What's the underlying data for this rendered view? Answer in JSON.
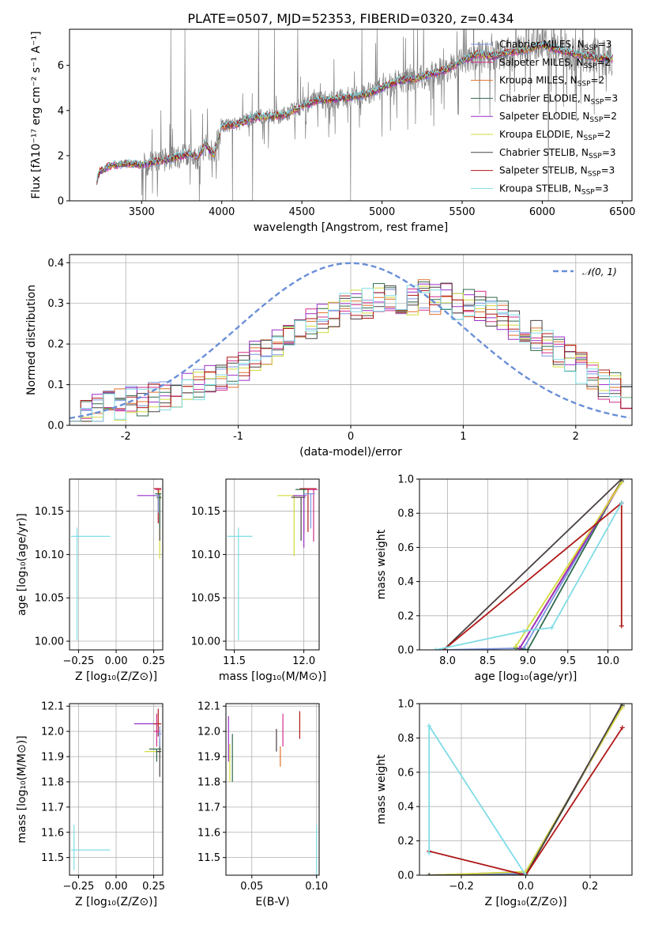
{
  "figure_title": "PLATE=0507, MJD=52353, FIBERID=0320, z=0.434",
  "models": [
    {
      "name": "Chabrier MILES, N",
      "sub": "SSP",
      "eq": "=3",
      "color": "#7b96e0"
    },
    {
      "name": "Salpeter MILES, N",
      "sub": "SSP",
      "eq": "=2",
      "color": "#d22f8c"
    },
    {
      "name": "Kroupa MILES, N",
      "sub": "SSP",
      "eq": "=2",
      "color": "#e0702a"
    },
    {
      "name": "Chabrier ELODIE, N",
      "sub": "SSP",
      "eq": "=3",
      "color": "#2f6a4c"
    },
    {
      "name": "Salpeter ELODIE, N",
      "sub": "SSP",
      "eq": "=2",
      "color": "#9a2fc8"
    },
    {
      "name": "Kroupa ELODIE, N",
      "sub": "SSP",
      "eq": "=2",
      "color": "#d2dc3c"
    },
    {
      "name": "Chabrier STELIB, N",
      "sub": "SSP",
      "eq": "=3",
      "color": "#4a4040"
    },
    {
      "name": "Salpeter STELIB, N",
      "sub": "SSP",
      "eq": "=3",
      "color": "#b01818"
    },
    {
      "name": "Kroupa STELIB, N",
      "sub": "SSP",
      "eq": "=3",
      "color": "#80dce6"
    }
  ],
  "chart_data": [
    {
      "id": "spectrum",
      "type": "line",
      "xlabel": "wavelength [Angstrom, rest frame]",
      "ylabel": "Flux [fλ10⁻¹⁷ erg cm⁻² s⁻¹ A⁻¹]",
      "xlim": [
        3050,
        6560
      ],
      "ylim": [
        0,
        7.6
      ],
      "xticks": [
        3500,
        4000,
        4500,
        5000,
        5500,
        6000,
        6500
      ],
      "yticks": [
        0,
        2,
        4,
        6
      ],
      "data_color": "#7f7f7f",
      "model_x": [
        3220,
        3240,
        3300,
        3400,
        3500,
        3600,
        3700,
        3800,
        3850,
        3900,
        3950,
        4000,
        4100,
        4200,
        4300,
        4400,
        4500,
        4600,
        4700,
        4800,
        4900,
        5000,
        5100,
        5200,
        5300,
        5400,
        5500,
        5600,
        5700,
        5800,
        5900,
        6000,
        6100,
        6200,
        6300,
        6400
      ],
      "model_y": [
        0.9,
        1.3,
        1.55,
        1.65,
        1.6,
        1.75,
        1.9,
        2.1,
        1.9,
        2.5,
        2.0,
        3.3,
        3.4,
        3.7,
        3.75,
        3.8,
        4.2,
        4.45,
        4.5,
        4.6,
        4.7,
        5.0,
        5.3,
        5.4,
        5.6,
        5.8,
        6.2,
        6.5,
        6.4,
        6.6,
        6.7,
        6.9,
        6.7,
        6.5,
        6.4,
        6.3
      ],
      "legend_position": "upper right"
    },
    {
      "id": "residuals",
      "type": "step",
      "xlabel": "(data-model)/error",
      "ylabel": "Normed distribution",
      "xlim": [
        -2.5,
        2.5
      ],
      "ylim": [
        0,
        0.42
      ],
      "xticks": [
        -2,
        -1,
        0,
        1,
        2
      ],
      "yticks": [
        0.0,
        0.1,
        0.2,
        0.3,
        0.4
      ],
      "bin_width": 0.1,
      "reference_curve": "N(0,1)",
      "legend_label": "𝒩(0, 1)",
      "legend_position": "upper right",
      "histogram_shape": [
        0.03,
        0.03,
        0.04,
        0.05,
        0.05,
        0.06,
        0.06,
        0.07,
        0.07,
        0.08,
        0.09,
        0.1,
        0.11,
        0.12,
        0.13,
        0.15,
        0.17,
        0.18,
        0.2,
        0.22,
        0.23,
        0.25,
        0.26,
        0.28,
        0.29,
        0.3,
        0.3,
        0.31,
        0.31,
        0.31,
        0.31,
        0.32,
        0.31,
        0.31,
        0.3,
        0.3,
        0.29,
        0.28,
        0.27,
        0.25,
        0.24,
        0.22,
        0.2,
        0.18,
        0.16,
        0.14,
        0.12,
        0.1,
        0.09,
        0.07
      ]
    },
    {
      "id": "Z-age",
      "type": "errorbar",
      "xlabel": "Z [log₁₀(Z/Z⊙)]",
      "ylabel": "age  [log₁₀(age/yr)]",
      "xlim": [
        -0.31,
        0.31
      ],
      "ylim": [
        9.99,
        10.187
      ],
      "xticks": [
        -0.25,
        0.0,
        0.25
      ],
      "xticklabels": [
        "−0.25",
        "0.00",
        "0.25"
      ],
      "yticks": [
        10.0,
        10.05,
        10.1,
        10.15
      ],
      "yticklabels": [
        "10.00",
        "10.05",
        "10.10",
        "10.15"
      ],
      "points": [
        {
          "m": 8,
          "x": -0.26,
          "xerr": [
            0.04,
            0.22
          ],
          "y": 10.121,
          "yerr": [
            0.12,
            0.01
          ]
        },
        {
          "m": 7,
          "x": 0.28,
          "xerr": [
            0.03,
            0.02
          ],
          "y": 10.176,
          "yerr": [
            0.04,
            0.0
          ]
        },
        {
          "m": 1,
          "x": 0.29,
          "xerr": [
            0.03,
            0.01
          ],
          "y": 10.175,
          "yerr": [
            0.04,
            0.0
          ]
        },
        {
          "m": 4,
          "x": 0.22,
          "xerr": [
            0.08,
            0.07
          ],
          "y": 10.168,
          "yerr": [
            0.0,
            0.0
          ]
        },
        {
          "m": 5,
          "x": 0.29,
          "xerr": [
            0.02,
            0.01
          ],
          "y": 10.165,
          "yerr": [
            0.07,
            0.01
          ]
        },
        {
          "m": 6,
          "x": 0.29,
          "xerr": [
            0.02,
            0.01
          ],
          "y": 10.166,
          "yerr": [
            0.05,
            0.0
          ]
        },
        {
          "m": 3,
          "x": 0.29,
          "xerr": [
            0.03,
            0.01
          ],
          "y": 10.17,
          "yerr": [
            0.04,
            0.0
          ]
        },
        {
          "m": 0,
          "x": 0.28,
          "xerr": [
            0.02,
            0.01
          ],
          "y": 10.168,
          "yerr": [
            0.02,
            0.0
          ]
        }
      ]
    },
    {
      "id": "mass-age",
      "type": "errorbar",
      "xlabel": "mass [log₁₀(M/M⊙)]",
      "ylabel": "",
      "xlim": [
        11.44,
        12.11
      ],
      "ylim": [
        9.99,
        10.187
      ],
      "xticks": [
        11.5,
        12.0
      ],
      "xticklabels": [
        "11.5",
        "12.0"
      ],
      "yticks": [
        10.0,
        10.05,
        10.1,
        10.15
      ],
      "yticklabels": [
        "10.00",
        "10.05",
        "10.10",
        "10.15"
      ],
      "points": [
        {
          "m": 8,
          "x": 11.53,
          "xerr": [
            0.08,
            0.1
          ],
          "y": 10.121,
          "yerr": [
            0.12,
            0.01
          ]
        },
        {
          "m": 5,
          "x": 11.93,
          "xerr": [
            0.12,
            0.05
          ],
          "y": 10.168,
          "yerr": [
            0.07,
            0.0
          ]
        },
        {
          "m": 3,
          "x": 12.0,
          "xerr": [
            0.06,
            0.04
          ],
          "y": 10.175,
          "yerr": [
            0.05,
            0.0
          ]
        },
        {
          "m": 7,
          "x": 12.03,
          "xerr": [
            0.06,
            0.06
          ],
          "y": 10.176,
          "yerr": [
            0.05,
            0.0
          ]
        },
        {
          "m": 1,
          "x": 12.07,
          "xerr": [
            0.05,
            0.03
          ],
          "y": 10.175,
          "yerr": [
            0.06,
            0.0
          ]
        },
        {
          "m": 4,
          "x": 12.0,
          "xerr": [
            0.08,
            0.02
          ],
          "y": 10.168,
          "yerr": [
            0.06,
            0.0
          ]
        },
        {
          "m": 6,
          "x": 11.98,
          "xerr": [
            0.07,
            0.03
          ],
          "y": 10.166,
          "yerr": [
            0.05,
            0.0
          ]
        },
        {
          "m": 0,
          "x": 12.05,
          "xerr": [
            0.05,
            0.03
          ],
          "y": 10.17,
          "yerr": [
            0.04,
            0.0
          ]
        }
      ]
    },
    {
      "id": "age-weight",
      "type": "line",
      "xlabel": "age  [log₁₀(age/yr)]",
      "ylabel": "mass weight",
      "xlim": [
        7.65,
        10.3
      ],
      "ylim": [
        0,
        1.0
      ],
      "xticks": [
        8.0,
        8.5,
        9.0,
        9.5,
        10.0
      ],
      "xticklabels": [
        "8.0",
        "8.5",
        "9.0",
        "9.5",
        "10.0"
      ],
      "yticks": [
        0.0,
        0.2,
        0.4,
        0.6,
        0.8,
        1.0
      ],
      "yticklabels": [
        "0.0",
        "0.2",
        "0.4",
        "0.6",
        "0.8",
        "1.0"
      ],
      "series": [
        {
          "m": 0,
          "x": [
            7.95,
            8.95,
            10.17
          ],
          "y": [
            0.0,
            0.01,
            0.99
          ]
        },
        {
          "m": 1,
          "x": [
            8.9,
            10.17
          ],
          "y": [
            0.01,
            0.99
          ]
        },
        {
          "m": 2,
          "x": [
            8.9,
            10.17
          ],
          "y": [
            0.01,
            0.99
          ]
        },
        {
          "m": 3,
          "x": [
            8.85,
            9.0,
            10.17
          ],
          "y": [
            0.01,
            0.0,
            0.99
          ]
        },
        {
          "m": 4,
          "x": [
            8.9,
            10.17
          ],
          "y": [
            0.01,
            0.98
          ]
        },
        {
          "m": 5,
          "x": [
            8.85,
            10.17
          ],
          "y": [
            0.02,
            0.98
          ]
        },
        {
          "m": 6,
          "x": [
            7.95,
            10.17
          ],
          "y": [
            0.0,
            1.0
          ]
        },
        {
          "m": 7,
          "x": [
            7.95,
            10.17,
            10.17
          ],
          "y": [
            0.0,
            0.86,
            0.14
          ]
        },
        {
          "m": 8,
          "x": [
            7.85,
            8.95,
            9.3,
            10.17
          ],
          "y": [
            0.0,
            0.11,
            0.13,
            0.86
          ]
        }
      ]
    },
    {
      "id": "Z-mass",
      "type": "errorbar",
      "xlabel": "Z [log₁₀(Z/Z⊙)]",
      "ylabel": "mass [log₁₀(M/M⊙)]",
      "xlim": [
        -0.31,
        0.31
      ],
      "ylim": [
        11.43,
        12.11
      ],
      "xticks": [
        -0.25,
        0.0,
        0.25
      ],
      "xticklabels": [
        "−0.25",
        "0.00",
        "0.25"
      ],
      "yticks": [
        11.5,
        11.6,
        11.7,
        11.8,
        11.9,
        12.0,
        12.1
      ],
      "yticklabels": [
        "11.5",
        "11.6",
        "11.7",
        "11.8",
        "11.9",
        "12.0",
        "12.1"
      ],
      "points": [
        {
          "m": 8,
          "x": -0.28,
          "xerr": [
            0.02,
            0.24
          ],
          "y": 11.53,
          "yerr": [
            0.08,
            0.1
          ]
        },
        {
          "m": 4,
          "x": 0.2,
          "xerr": [
            0.08,
            0.07
          ],
          "y": 12.03,
          "yerr": [
            0.0,
            0.0
          ]
        },
        {
          "m": 7,
          "x": 0.28,
          "xerr": [
            0.03,
            0.02
          ],
          "y": 12.03,
          "yerr": [
            0.05,
            0.06
          ]
        },
        {
          "m": 1,
          "x": 0.27,
          "xerr": [
            0.02,
            0.02
          ],
          "y": 12.0,
          "yerr": [
            0.06,
            0.07
          ]
        },
        {
          "m": 5,
          "x": 0.25,
          "xerr": [
            0.06,
            0.04
          ],
          "y": 11.92,
          "yerr": [
            0.0,
            0.0
          ]
        },
        {
          "m": 6,
          "x": 0.29,
          "xerr": [
            0.02,
            0.01
          ],
          "y": 11.92,
          "yerr": [
            0.1,
            0.05
          ]
        },
        {
          "m": 3,
          "x": 0.27,
          "xerr": [
            0.05,
            0.03
          ],
          "y": 11.93,
          "yerr": [
            0.05,
            0.0
          ]
        },
        {
          "m": 0,
          "x": 0.29,
          "xerr": [
            0.02,
            0.01
          ],
          "y": 11.99,
          "yerr": [
            0.05,
            0.03
          ]
        }
      ]
    },
    {
      "id": "EBV-mass",
      "type": "errorbar",
      "xlabel": "E(B-V)",
      "ylabel": "",
      "xlim": [
        0.03,
        0.102
      ],
      "ylim": [
        11.43,
        12.11
      ],
      "xticks": [
        0.05,
        0.1
      ],
      "xticklabels": [
        "0.05",
        "0.10"
      ],
      "yticks": [
        11.5,
        11.6,
        11.7,
        11.8,
        11.9,
        12.0,
        12.1
      ],
      "yticklabels": [
        "11.5",
        "11.6",
        "11.7",
        "11.8",
        "11.9",
        "12.0",
        "12.1"
      ],
      "points": [
        {
          "m": 4,
          "x": 0.032,
          "xerr": [
            0,
            0
          ],
          "y": 11.98,
          "yerr": [
            0.1,
            0.08
          ]
        },
        {
          "m": 5,
          "x": 0.033,
          "xerr": [
            0,
            0
          ],
          "y": 11.9,
          "yerr": [
            0.1,
            0.05
          ]
        },
        {
          "m": 3,
          "x": 0.035,
          "xerr": [
            0,
            0
          ],
          "y": 11.9,
          "yerr": [
            0.1,
            0.09
          ]
        },
        {
          "m": 6,
          "x": 0.069,
          "xerr": [
            0,
            0
          ],
          "y": 11.96,
          "yerr": [
            0.04,
            0.05
          ]
        },
        {
          "m": 2,
          "x": 0.072,
          "xerr": [
            0,
            0
          ],
          "y": 11.9,
          "yerr": [
            0.04,
            0.04
          ]
        },
        {
          "m": 1,
          "x": 0.074,
          "xerr": [
            0,
            0
          ],
          "y": 12.0,
          "yerr": [
            0.06,
            0.07
          ]
        },
        {
          "m": 7,
          "x": 0.087,
          "xerr": [
            0,
            0
          ],
          "y": 12.02,
          "yerr": [
            0.05,
            0.06
          ]
        },
        {
          "m": 8,
          "x": 0.1,
          "xerr": [
            0,
            0
          ],
          "y": 11.53,
          "yerr": [
            0.1,
            0.1
          ]
        }
      ]
    },
    {
      "id": "Z-weight",
      "type": "line",
      "xlabel": "Z [log₁₀(Z/Z⊙)]",
      "ylabel": "mass weight",
      "xlim": [
        -0.33,
        0.33
      ],
      "ylim": [
        0,
        1.0
      ],
      "xticks": [
        -0.2,
        0.0,
        0.2
      ],
      "xticklabels": [
        "−0.2",
        "0.0",
        "0.2"
      ],
      "yticks": [
        0.0,
        0.2,
        0.4,
        0.6,
        0.8,
        1.0
      ],
      "yticklabels": [
        "0.0",
        "0.2",
        "0.4",
        "0.6",
        "0.8",
        "1.0"
      ],
      "series": [
        {
          "m": 0,
          "x": [
            -0.3,
            0.0,
            0.3
          ],
          "y": [
            0.0,
            0.01,
            0.99
          ]
        },
        {
          "m": 1,
          "x": [
            0.0,
            0.3
          ],
          "y": [
            0.01,
            0.99
          ]
        },
        {
          "m": 2,
          "x": [
            0.0,
            0.3
          ],
          "y": [
            0.01,
            0.99
          ]
        },
        {
          "m": 3,
          "x": [
            -0.3,
            0.0,
            0.3
          ],
          "y": [
            0.0,
            0.0,
            0.99
          ]
        },
        {
          "m": 4,
          "x": [
            -0.3,
            0.0,
            0.3
          ],
          "y": [
            0.0,
            0.02,
            0.98
          ]
        },
        {
          "m": 5,
          "x": [
            -0.3,
            0.0,
            0.3
          ],
          "y": [
            0.0,
            0.02,
            0.98
          ]
        },
        {
          "m": 6,
          "x": [
            -0.3,
            0.0,
            0.3
          ],
          "y": [
            0.0,
            0.0,
            1.0
          ]
        },
        {
          "m": 7,
          "x": [
            -0.3,
            0.0,
            0.3
          ],
          "y": [
            0.14,
            0.0,
            0.86
          ]
        },
        {
          "m": 8,
          "x": [
            -0.3,
            -0.3,
            0.0
          ],
          "y": [
            0.13,
            0.87,
            0.0
          ]
        }
      ]
    }
  ]
}
